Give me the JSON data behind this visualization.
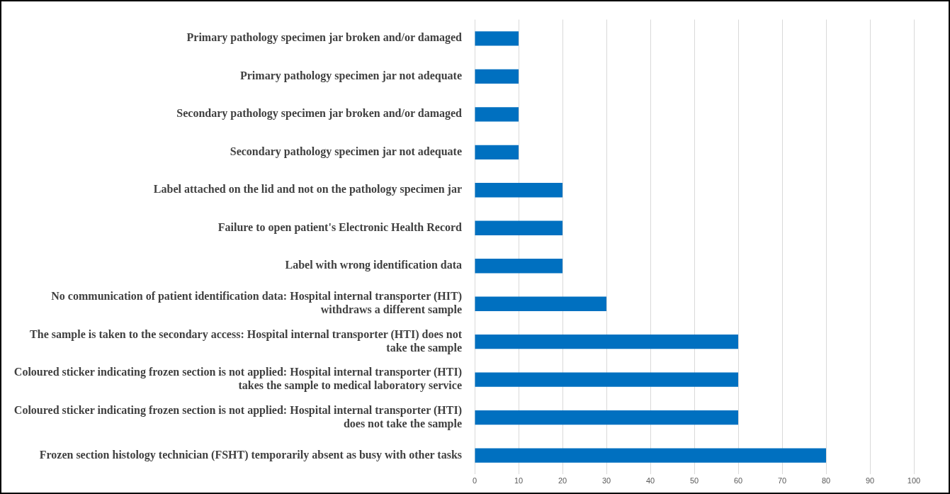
{
  "chart_data": {
    "type": "bar",
    "orientation": "horizontal",
    "categories": [
      "Primary pathology specimen jar broken and/or damaged",
      "Primary pathology specimen jar not adequate",
      "Secondary pathology specimen jar broken and/or damaged",
      "Secondary pathology specimen jar not adequate",
      "Label attached on the lid and not on the pathology specimen jar",
      "Failure to open patient's Electronic Health Record",
      "Label with wrong identification data",
      "No communication of patient identification data: Hospital internal transporter (HIT) withdraws a different sample",
      "The sample is taken to the secondary access: Hospital internal transporter (HTI) does not take the sample",
      "Coloured sticker indicating frozen section is not applied: Hospital internal transporter (HTI) takes the sample to medical laboratory service",
      "Coloured sticker indicating frozen section is not applied: Hospital internal transporter (HTI) does not take the sample",
      "Frozen section histology technician (FSHT) temporarily absent as busy with other tasks"
    ],
    "values": [
      10,
      10,
      10,
      10,
      20,
      20,
      20,
      30,
      60,
      60,
      60,
      80
    ],
    "color": "#0070c0",
    "xlim": [
      0,
      100
    ],
    "xticks": [
      0,
      10,
      20,
      30,
      40,
      50,
      60,
      70,
      80,
      90,
      100
    ],
    "grid": "x",
    "legend": false
  }
}
